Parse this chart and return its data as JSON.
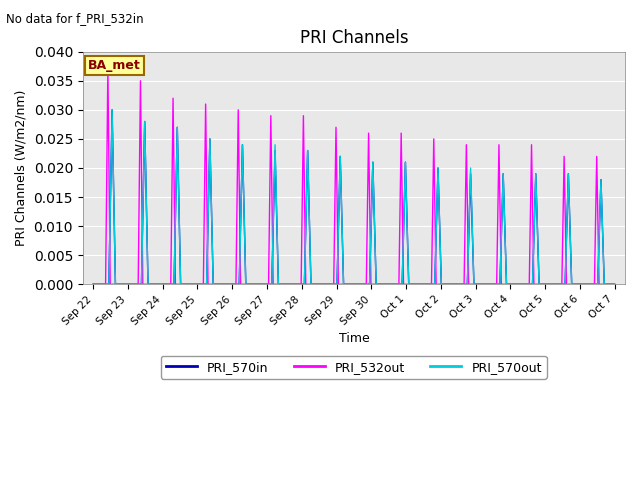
{
  "title": "PRI Channels",
  "no_data_text": "No data for f_PRI_532in",
  "ylabel": "PRI Channels (W/m2/nm)",
  "xlabel": "Time",
  "ylim": [
    0.0,
    0.04
  ],
  "background_color": "#e8e8e8",
  "legend_label": "BA_met",
  "legend_facecolor": "#ffff99",
  "legend_edgecolor": "#996600",
  "legend_textcolor": "#880000",
  "xtick_labels": [
    "Sep 22",
    "Sep 23",
    "Sep 24",
    "Sep 25",
    "Sep 26",
    "Sep 27",
    "Sep 28",
    "Sep 29",
    "Sep 30",
    "Oct 1",
    "Oct 2",
    "Oct 3",
    "Oct 4",
    "Oct 5",
    "Oct 6",
    "Oct 7"
  ],
  "peak_532out": [
    0.037,
    0.035,
    0.032,
    0.031,
    0.03,
    0.029,
    0.029,
    0.027,
    0.026,
    0.026,
    0.025,
    0.024,
    0.024,
    0.024,
    0.022,
    0.022
  ],
  "peak_570in": [
    0.03,
    0.028,
    0.027,
    0.025,
    0.024,
    0.023,
    0.023,
    0.022,
    0.021,
    0.021,
    0.02,
    0.019,
    0.019,
    0.019,
    0.019,
    0.018
  ],
  "peak_570out": [
    0.03,
    0.028,
    0.027,
    0.025,
    0.024,
    0.024,
    0.023,
    0.022,
    0.021,
    0.021,
    0.02,
    0.02,
    0.019,
    0.019,
    0.019,
    0.018
  ],
  "line_570in_color": "#0000bb",
  "line_532out_color": "#ff00ff",
  "line_570out_color": "#00ccdd",
  "line_width": 1.0,
  "ytick_values": [
    0.0,
    0.005,
    0.01,
    0.015,
    0.02,
    0.025,
    0.03,
    0.035,
    0.04
  ],
  "num_days": 16,
  "points_per_day": 500
}
